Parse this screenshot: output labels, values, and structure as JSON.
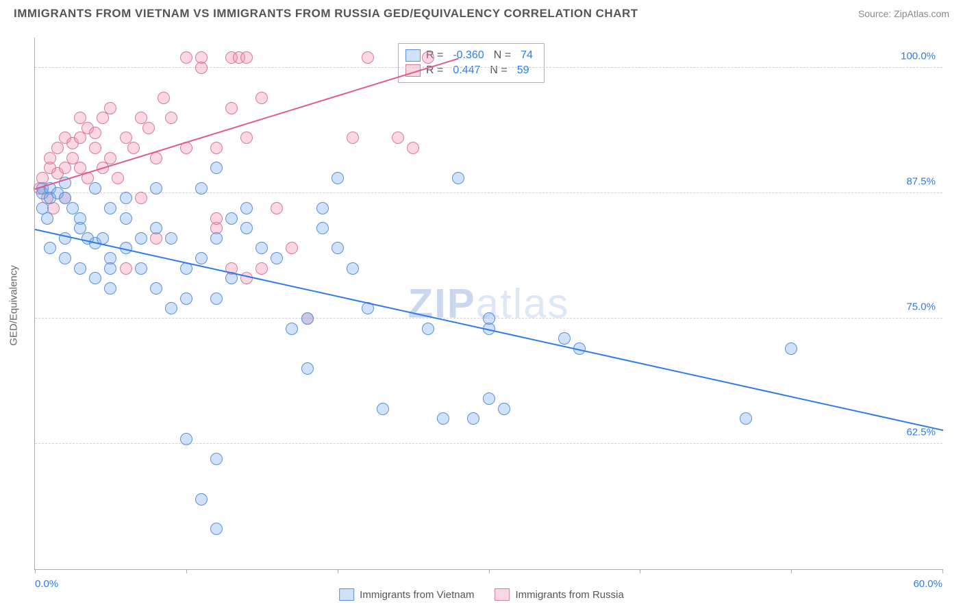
{
  "title": "IMMIGRANTS FROM VIETNAM VS IMMIGRANTS FROM RUSSIA GED/EQUIVALENCY CORRELATION CHART",
  "source": "Source: ZipAtlas.com",
  "watermark_a": "ZIP",
  "watermark_b": "atlas",
  "axis": {
    "y_title": "GED/Equivalency",
    "x_min_label": "0.0%",
    "x_max_label": "60.0%",
    "y_ticks": [
      {
        "v": 62.5,
        "label": "62.5%"
      },
      {
        "v": 75.0,
        "label": "75.0%"
      },
      {
        "v": 87.5,
        "label": "87.5%"
      },
      {
        "v": 100.0,
        "label": "100.0%"
      }
    ],
    "x_ticks": [
      0,
      10,
      20,
      30,
      40,
      50,
      60
    ],
    "xlim": [
      0,
      60
    ],
    "ylim": [
      50,
      103
    ]
  },
  "series": {
    "vietnam": {
      "label": "Immigrants from Vietnam",
      "fill": "rgba(120,170,240,0.35)",
      "stroke": "#5a8fd6",
      "line_color": "#2b7ce9",
      "r_label": "R =",
      "r_value": "-0.360",
      "n_label": "N =",
      "n_value": "74",
      "trend": {
        "x1": 0,
        "y1": 84,
        "x2": 60,
        "y2": 64
      },
      "points": [
        [
          0.5,
          88
        ],
        [
          0.5,
          87.5
        ],
        [
          1,
          88
        ],
        [
          1,
          87
        ],
        [
          1.5,
          87.5
        ],
        [
          2,
          87
        ],
        [
          0.5,
          86
        ],
        [
          0.8,
          85
        ],
        [
          2,
          88.5
        ],
        [
          2.5,
          86
        ],
        [
          3,
          85
        ],
        [
          3.5,
          83
        ],
        [
          4,
          82.5
        ],
        [
          4.5,
          83
        ],
        [
          5,
          81
        ],
        [
          5,
          80
        ],
        [
          2,
          83
        ],
        [
          3,
          80
        ],
        [
          4,
          79
        ],
        [
          5,
          78
        ],
        [
          6,
          82
        ],
        [
          7,
          83
        ],
        [
          8,
          84
        ],
        [
          5,
          86
        ],
        [
          6,
          87
        ],
        [
          8,
          88
        ],
        [
          9,
          76
        ],
        [
          10,
          77
        ],
        [
          10,
          80
        ],
        [
          11,
          88
        ],
        [
          12,
          90
        ],
        [
          12,
          83
        ],
        [
          13,
          79
        ],
        [
          14,
          84
        ],
        [
          14,
          86
        ],
        [
          15,
          82
        ],
        [
          16,
          81
        ],
        [
          17,
          74
        ],
        [
          18,
          75
        ],
        [
          18,
          70
        ],
        [
          19,
          84
        ],
        [
          19,
          86
        ],
        [
          20,
          89
        ],
        [
          20,
          82
        ],
        [
          21,
          80
        ],
        [
          22,
          76
        ],
        [
          23,
          66
        ],
        [
          11,
          57
        ],
        [
          12,
          54
        ],
        [
          12,
          61
        ],
        [
          10,
          63
        ],
        [
          26,
          74
        ],
        [
          27,
          65
        ],
        [
          28,
          89
        ],
        [
          29,
          65
        ],
        [
          30,
          74
        ],
        [
          30,
          67
        ],
        [
          30,
          75
        ],
        [
          31,
          66
        ],
        [
          35,
          73
        ],
        [
          36,
          72
        ],
        [
          47,
          65
        ],
        [
          50,
          72
        ],
        [
          1,
          82
        ],
        [
          2,
          81
        ],
        [
          3,
          84
        ],
        [
          4,
          88
        ],
        [
          6,
          85
        ],
        [
          7,
          80
        ],
        [
          8,
          78
        ],
        [
          9,
          83
        ],
        [
          11,
          81
        ],
        [
          12,
          77
        ],
        [
          13,
          85
        ]
      ]
    },
    "russia": {
      "label": "Immigrants from Russia",
      "fill": "rgba(240,140,170,0.35)",
      "stroke": "#d67a9a",
      "line_color": "#e05a8a",
      "r_label": "R =",
      "r_value": "0.447",
      "n_label": "N =",
      "n_value": "59",
      "trend": {
        "x1": 0,
        "y1": 88,
        "x2": 28,
        "y2": 101
      },
      "points": [
        [
          0.3,
          88
        ],
        [
          0.5,
          89
        ],
        [
          0.8,
          87
        ],
        [
          1,
          90
        ],
        [
          1,
          91
        ],
        [
          1.2,
          86
        ],
        [
          1.5,
          89.5
        ],
        [
          1.5,
          92
        ],
        [
          2,
          93
        ],
        [
          2,
          90
        ],
        [
          2,
          87
        ],
        [
          2.5,
          91
        ],
        [
          2.5,
          92.5
        ],
        [
          3,
          90
        ],
        [
          3,
          93
        ],
        [
          3,
          95
        ],
        [
          3.5,
          89
        ],
        [
          3.5,
          94
        ],
        [
          4,
          92
        ],
        [
          4,
          93.5
        ],
        [
          4.5,
          90
        ],
        [
          4.5,
          95
        ],
        [
          5,
          91
        ],
        [
          5,
          96
        ],
        [
          5.5,
          89
        ],
        [
          6,
          93
        ],
        [
          6,
          80
        ],
        [
          6.5,
          92
        ],
        [
          7,
          95
        ],
        [
          7.5,
          94
        ],
        [
          7,
          87
        ],
        [
          8,
          91
        ],
        [
          8.5,
          97
        ],
        [
          9,
          95
        ],
        [
          10,
          92
        ],
        [
          10,
          101
        ],
        [
          11,
          101
        ],
        [
          11,
          100
        ],
        [
          12,
          84
        ],
        [
          12,
          92
        ],
        [
          12,
          85
        ],
        [
          13,
          96
        ],
        [
          13,
          101
        ],
        [
          13.5,
          101
        ],
        [
          14,
          93
        ],
        [
          14,
          101
        ],
        [
          15,
          97
        ],
        [
          15,
          80
        ],
        [
          16,
          86
        ],
        [
          17,
          82
        ],
        [
          13,
          80
        ],
        [
          14,
          79
        ],
        [
          21,
          93
        ],
        [
          22,
          101
        ],
        [
          24,
          93
        ],
        [
          25,
          92
        ],
        [
          26,
          101
        ],
        [
          18,
          75
        ],
        [
          8,
          83
        ]
      ]
    }
  },
  "style": {
    "point_radius": 9,
    "background": "#ffffff",
    "grid_color": "#d0d0d0"
  }
}
